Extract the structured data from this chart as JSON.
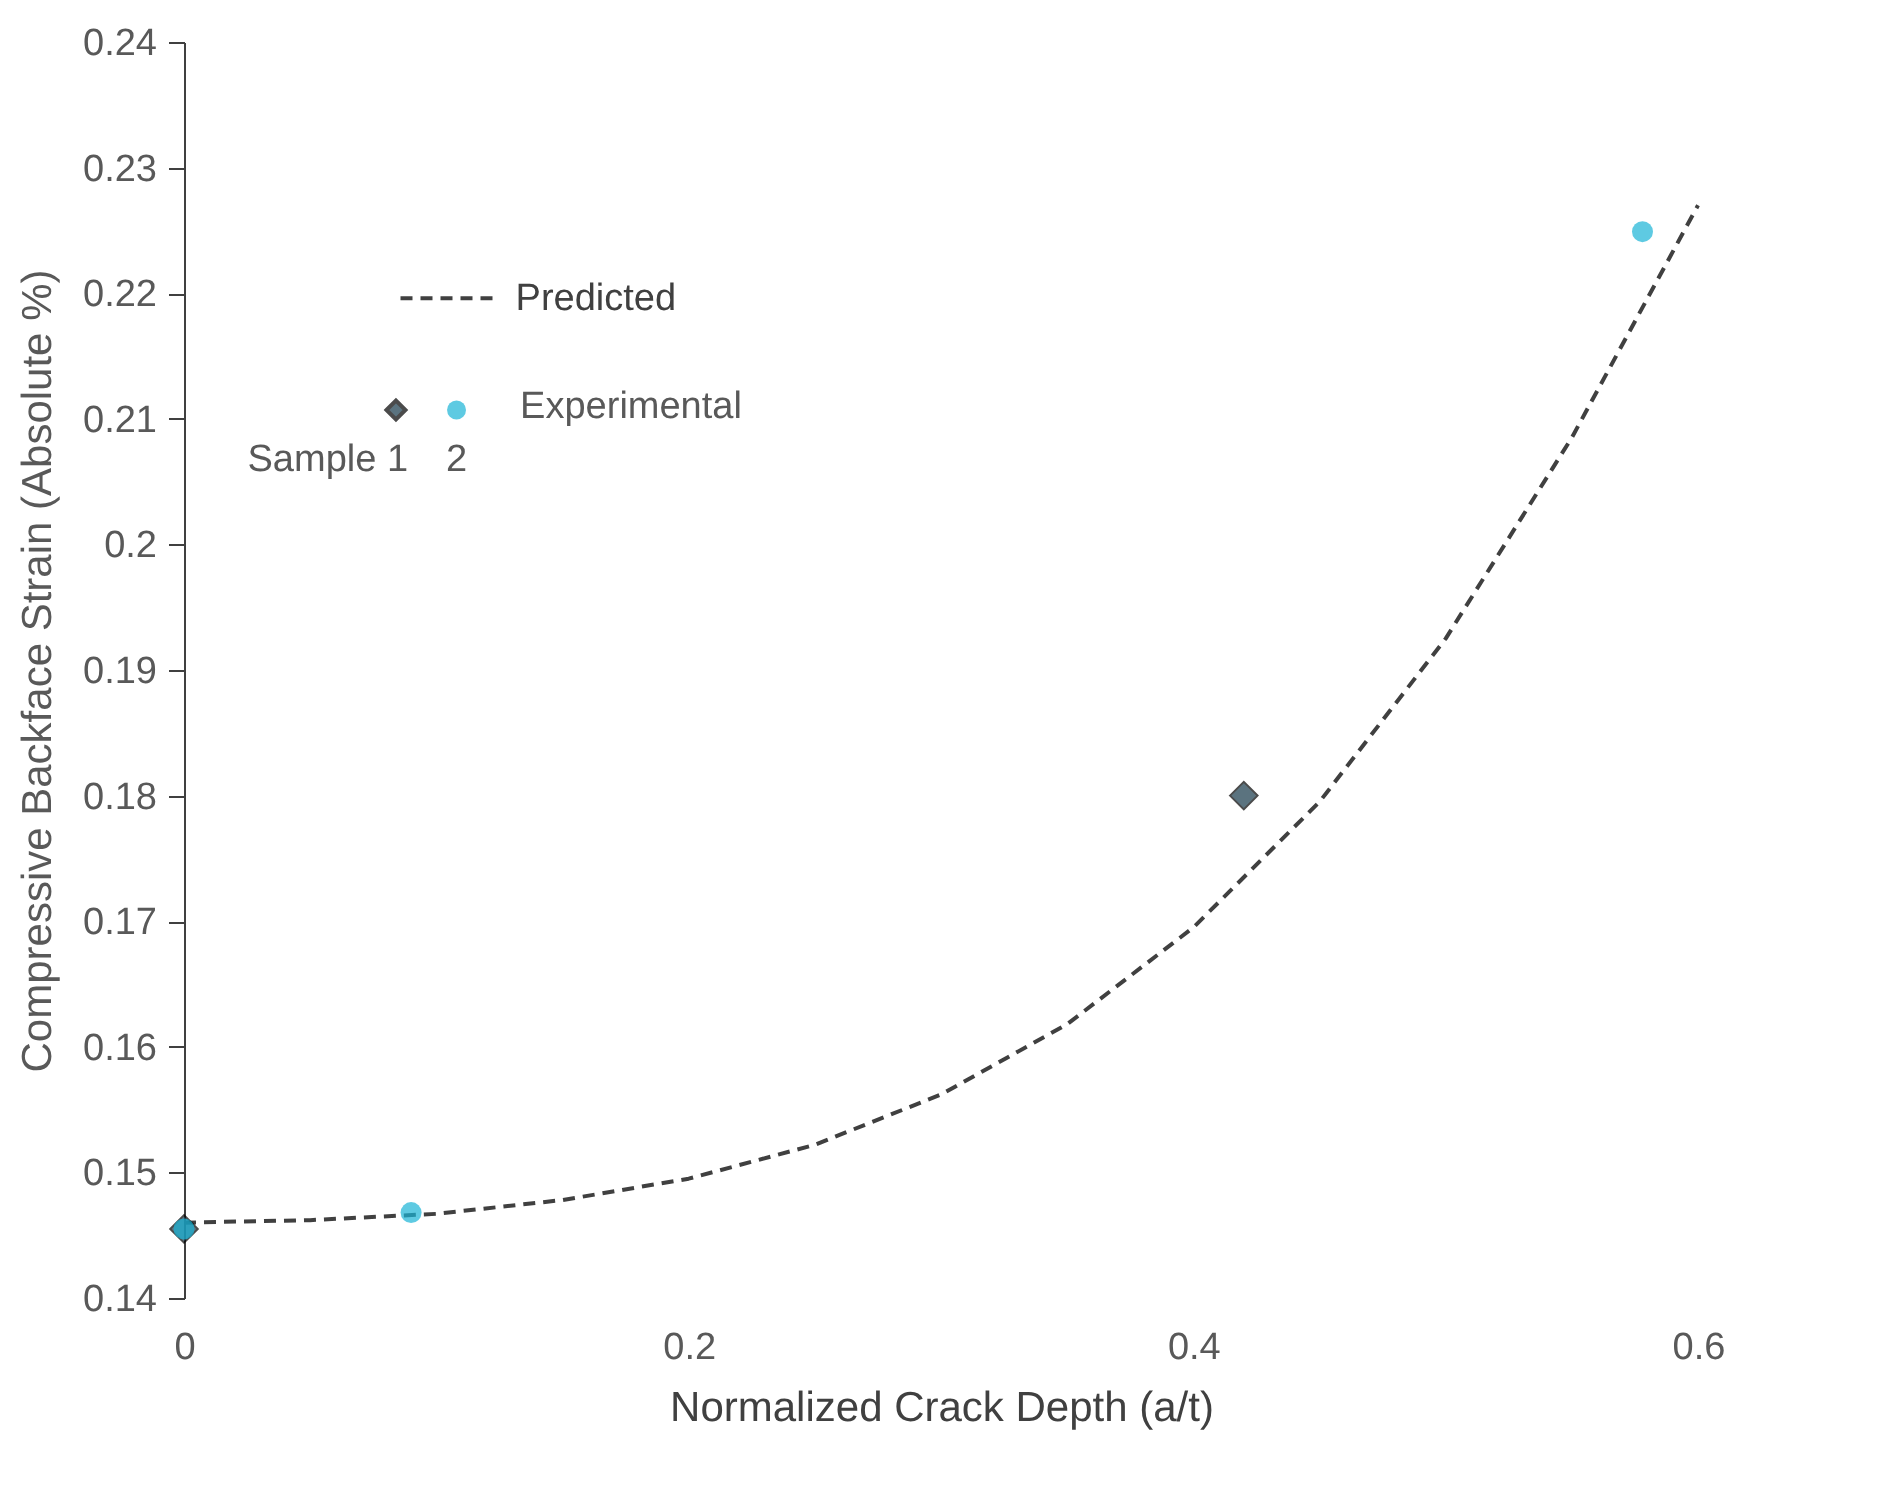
{
  "chart_data": {
    "type": "scatter",
    "xlabel": "Normalized Crack Depth (a/t)",
    "ylabel": "Compressive Backface Strain (Absolute %)",
    "xlim": [
      0,
      0.6
    ],
    "ylim": [
      0.14,
      0.24
    ],
    "xticks": [
      0,
      0.2,
      0.4,
      0.6
    ],
    "yticks": [
      0.14,
      0.15,
      0.16,
      0.17,
      0.18,
      0.19,
      0.2,
      0.21,
      0.22,
      0.23,
      0.24
    ],
    "grid": false,
    "legend": "top left",
    "annotations": [
      "Experimental"
    ],
    "series": [
      {
        "name": "Predicted",
        "type": "line",
        "line_style": "dashed",
        "marker": "none",
        "color": "#404040",
        "x": [
          0,
          0.05,
          0.1,
          0.15,
          0.2,
          0.25,
          0.3,
          0.35,
          0.4,
          0.45,
          0.5,
          0.55,
          0.6
        ],
        "values": [
          0.146,
          0.1462,
          0.1467,
          0.1478,
          0.1495,
          0.1522,
          0.1562,
          0.1618,
          0.1695,
          0.1795,
          0.1925,
          0.2085,
          0.227
        ]
      },
      {
        "name": "Sample 1",
        "marker": "diamond",
        "color": "#17394a",
        "x": [
          0,
          0.42
        ],
        "values": [
          0.1455,
          0.18
        ]
      },
      {
        "name": "2",
        "marker": "circle",
        "color": "#1ab3d6",
        "x": [
          0,
          0.09,
          0.578
        ],
        "values": [
          0.1455,
          0.1468,
          0.2249
        ]
      }
    ]
  }
}
